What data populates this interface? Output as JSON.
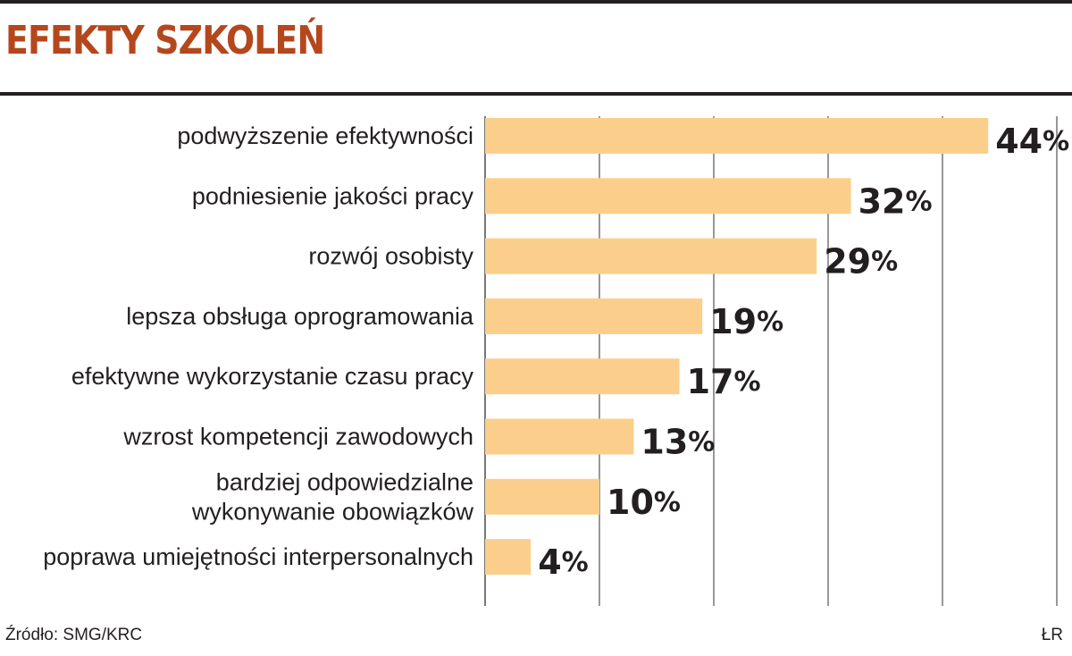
{
  "title": "EFEKTY SZKOLEŃ",
  "source": "Źródło: SMG/KRC",
  "credit": "ŁR",
  "colors": {
    "bar": "#fbcf8b",
    "title": "#b5471d",
    "text": "#231f20",
    "grid": "#777777"
  },
  "chart_data": {
    "type": "bar",
    "orientation": "horizontal",
    "title": "EFEKTY SZKOLEŃ",
    "categories": [
      [
        "podwyższenie efektywności"
      ],
      [
        "podniesienie jakości pracy"
      ],
      [
        "rozwój osobisty"
      ],
      [
        "lepsza obsługa oprogramowania"
      ],
      [
        "efektywne wykorzystanie czasu pracy"
      ],
      [
        "wzrost kompetencji zawodowych"
      ],
      [
        "bardziej odpowiedzialne",
        "wykonywanie obowiązków"
      ],
      [
        "poprawa umiejętności interpersonalnych"
      ]
    ],
    "values": [
      44,
      32,
      29,
      19,
      17,
      13,
      10,
      4
    ],
    "value_suffix": "%",
    "xlim": [
      0,
      50
    ],
    "grid": true
  }
}
